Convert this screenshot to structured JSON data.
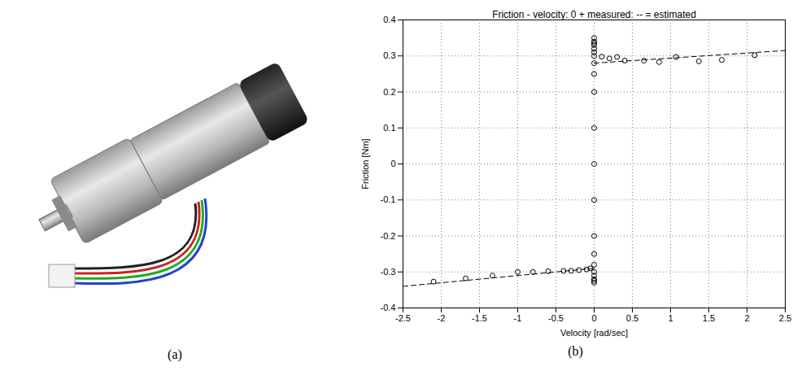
{
  "panel_labels": [
    "(a)",
    "(b)"
  ],
  "chart_data": {
    "type": "scatter",
    "title": "Friction - velocity: 0 + measured: -- = estimated",
    "x_label": "Velocity [rad/sec]",
    "y_label": "Friction [Nm]",
    "xlim": [
      -2.5,
      2.5
    ],
    "xticks": [
      -2.5,
      -2,
      -1.5,
      -1,
      -0.5,
      0,
      0.5,
      1,
      1.5,
      2,
      2.5
    ],
    "ylim": [
      -0.4,
      0.4
    ],
    "yticks": [
      -0.4,
      -0.3,
      -0.2,
      -0.1,
      0,
      0.1,
      0.2,
      0.3,
      0.4
    ],
    "grid": true,
    "series": [
      {
        "name": "measured",
        "type": "scatter",
        "marker": "o",
        "color": "#000000",
        "x": [
          0.1,
          0.2,
          0.3,
          0.4,
          0.65,
          0.85,
          1.07,
          1.37,
          1.67,
          2.1,
          0,
          0,
          0,
          0,
          0,
          0,
          0,
          0,
          0,
          0,
          0,
          0,
          0,
          0,
          0,
          0,
          0,
          0,
          0,
          0,
          0,
          -0.05,
          -0.1,
          -0.2,
          -0.3,
          -0.4,
          -0.6,
          -0.8,
          -1.0,
          -1.33,
          -1.68,
          -2.1
        ],
        "values": [
          0.298,
          0.293,
          0.297,
          0.287,
          0.287,
          0.283,
          0.297,
          0.285,
          0.289,
          0.302,
          0.35,
          0.34,
          0.335,
          0.33,
          0.32,
          0.31,
          0.3,
          0.28,
          0.25,
          0.2,
          0.1,
          0,
          -0.1,
          -0.2,
          -0.25,
          -0.28,
          -0.3,
          -0.31,
          -0.32,
          -0.325,
          -0.33,
          -0.29,
          -0.293,
          -0.295,
          -0.297,
          -0.297,
          -0.298,
          -0.3,
          -0.3,
          -0.31,
          -0.318,
          -0.327
        ]
      },
      {
        "name": "estimated",
        "type": "line",
        "line_style": "dashed",
        "color": "#000000",
        "x": [
          -2.5,
          0,
          0,
          0,
          2.5
        ],
        "values": [
          -0.34,
          -0.29,
          null,
          0.28,
          0.315
        ]
      }
    ]
  }
}
